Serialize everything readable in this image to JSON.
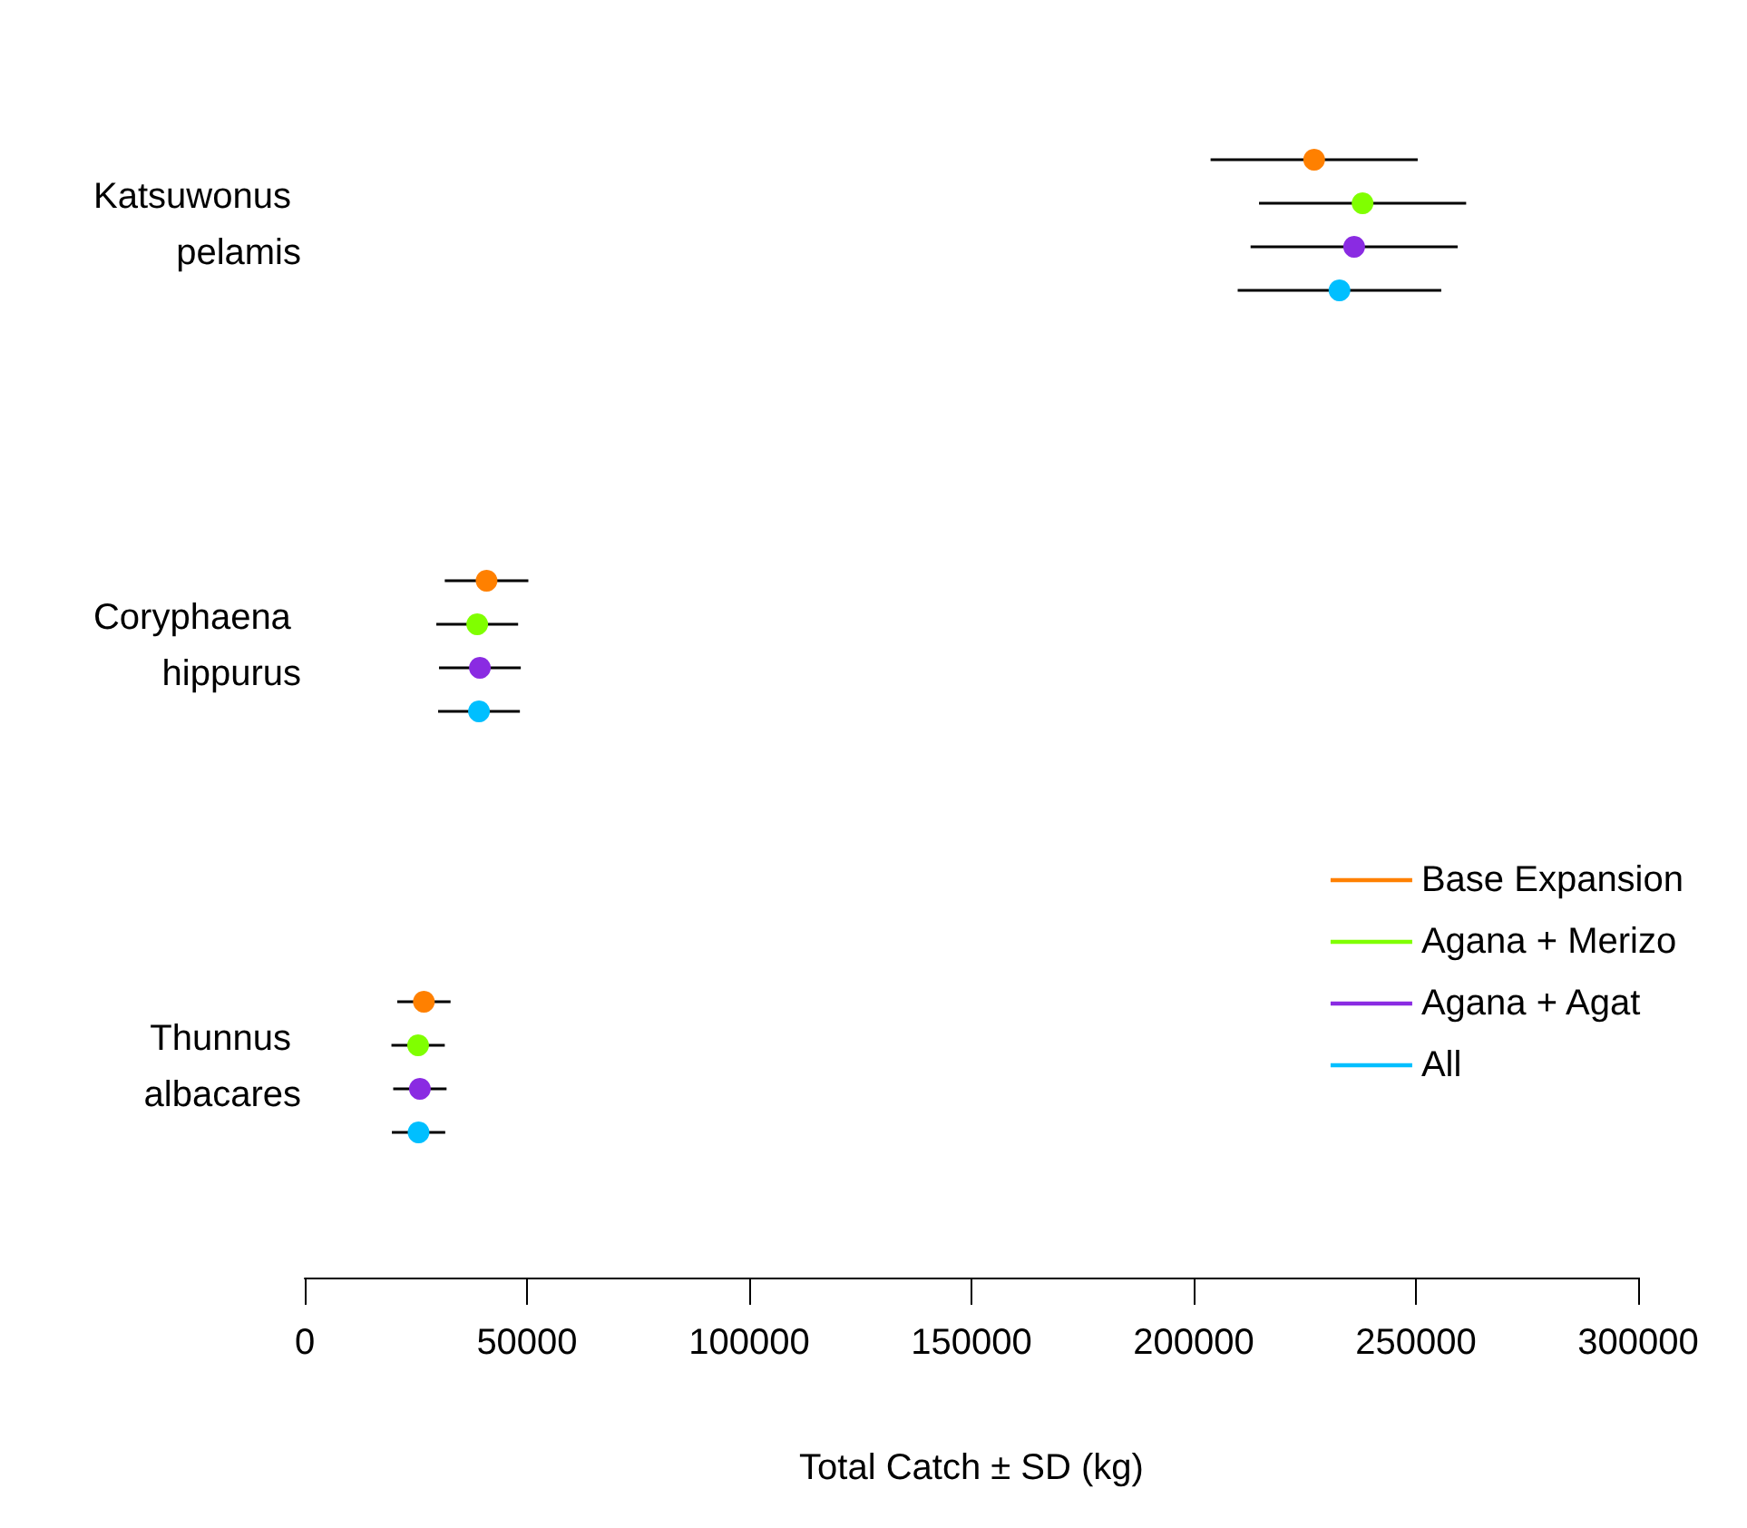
{
  "chart_data": {
    "type": "scatter",
    "orientation": "horizontal",
    "xlabel": "Total Catch ± SD (kg)",
    "categories": [
      "Katsuwonus pelamis",
      "Coryphaena hippurus",
      "Thunnus albacares"
    ],
    "series": [
      {
        "name": "Base Expansion",
        "color": "#ff8000",
        "values": [
          227100,
          40900,
          26800
        ],
        "errors": [
          23300,
          9400,
          6000
        ]
      },
      {
        "name": "Agana + Merizo",
        "color": "#80ff00",
        "values": [
          238000,
          38800,
          25500
        ],
        "errors": [
          23300,
          9200,
          6000
        ]
      },
      {
        "name": "Agana + Agat",
        "color": "#8a2be2",
        "values": [
          236100,
          39400,
          25900
        ],
        "errors": [
          23300,
          9200,
          6000
        ]
      },
      {
        "name": "All",
        "color": "#00bfff",
        "values": [
          232800,
          39200,
          25600
        ],
        "errors": [
          22900,
          9200,
          6000
        ]
      }
    ],
    "xlim": [
      0,
      300000
    ],
    "xticks": [
      0,
      50000,
      100000,
      150000,
      200000,
      250000,
      300000
    ],
    "grid": false,
    "legend": "right",
    "marker": "circle"
  }
}
